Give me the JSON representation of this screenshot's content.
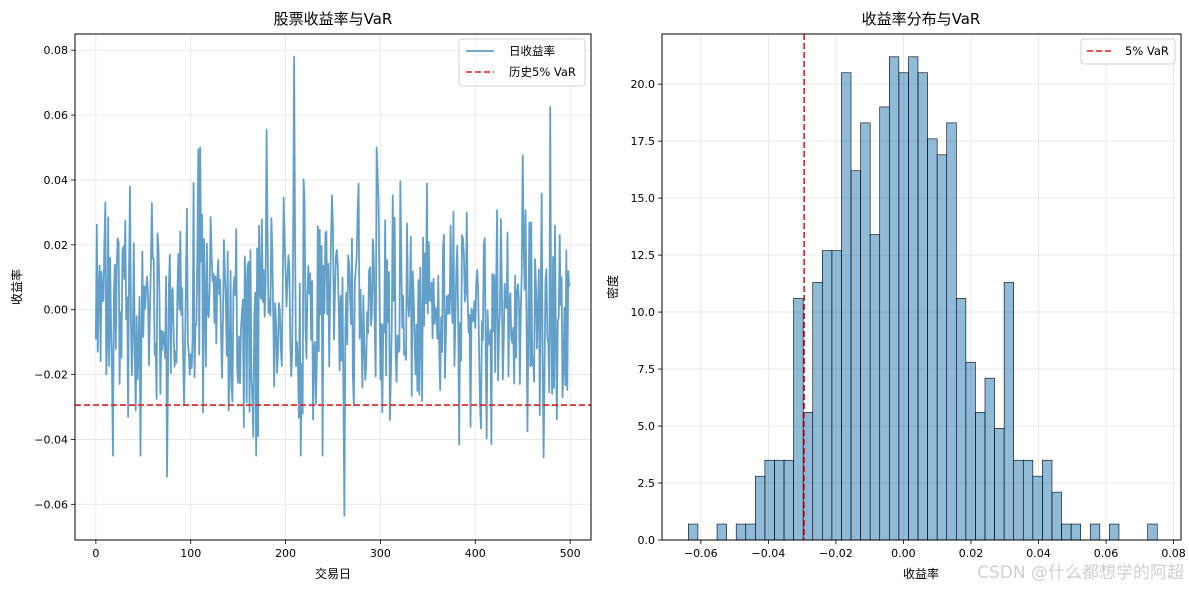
{
  "watermark": "CSDN @什么都想学的阿超",
  "chart_data": [
    {
      "type": "line",
      "title": "股票收益率与VaR",
      "xlabel": "交易日",
      "ylabel": "收益率",
      "xlim": [
        -22,
        522
      ],
      "ylim": [
        -0.071,
        0.085
      ],
      "xticks": [
        0,
        100,
        200,
        300,
        400,
        500
      ],
      "xtick_labels": [
        "0",
        "100",
        "200",
        "300",
        "400",
        "500"
      ],
      "yticks": [
        -0.06,
        -0.04,
        -0.02,
        0.0,
        0.02,
        0.04,
        0.06,
        0.08
      ],
      "ytick_labels": [
        "−0.06",
        "−0.04",
        "−0.02",
        "0.00",
        "0.02",
        "0.04",
        "0.06",
        "0.08"
      ],
      "grid": true,
      "legend_position": "top-right",
      "series": [
        {
          "name": "日收益率",
          "kind": "line",
          "color": "#1f77b4",
          "opacity": 0.7,
          "n_points": 500,
          "mean": 0.0,
          "std": 0.0185,
          "min": -0.0635,
          "max": 0.078,
          "notable_points": [
            [
              10,
              0.033
            ],
            [
              36,
              0.038
            ],
            [
              75,
              -0.0515
            ],
            [
              110,
              0.05
            ],
            [
              180,
              0.0555
            ],
            [
              209,
              0.078
            ],
            [
              262,
              -0.0635
            ],
            [
              383,
              -0.0415
            ],
            [
              417,
              -0.0415
            ],
            [
              455,
              -0.0375
            ],
            [
              472,
              -0.0455
            ],
            [
              479,
              0.0625
            ],
            [
              500,
              -0.027
            ]
          ]
        },
        {
          "name": "历史5% VaR",
          "kind": "hline",
          "y": -0.0294,
          "color": "#e31a1c",
          "dash": "dashed"
        }
      ]
    },
    {
      "type": "bar",
      "title": "收益率分布与VaR",
      "xlabel": "收益率",
      "ylabel": "密度",
      "xlim": [
        -0.0715,
        0.0822
      ],
      "ylim": [
        0,
        22.2
      ],
      "xticks": [
        -0.06,
        -0.04,
        -0.02,
        0.0,
        0.02,
        0.04,
        0.06,
        0.08
      ],
      "xtick_labels": [
        "−0.06",
        "−0.04",
        "−0.02",
        "0.00",
        "0.02",
        "0.04",
        "0.06",
        "0.08"
      ],
      "yticks": [
        0.0,
        2.5,
        5.0,
        7.5,
        10.0,
        12.5,
        15.0,
        17.5,
        20.0
      ],
      "ytick_labels": [
        "0.0",
        "2.5",
        "5.0",
        "7.5",
        "10.0",
        "12.5",
        "15.0",
        "17.5",
        "20.0"
      ],
      "grid": true,
      "legend_position": "top-right",
      "bin_start": -0.0637,
      "bin_width": 0.002834,
      "bar_color": "#1f77b4",
      "bar_opacity": 0.5,
      "values": [
        0.7,
        0,
        0,
        0.7,
        0,
        0.7,
        0.7,
        2.8,
        3.5,
        3.5,
        3.5,
        10.6,
        5.6,
        11.3,
        12.7,
        12.7,
        20.5,
        16.2,
        18.3,
        13.4,
        19.0,
        21.2,
        20.5,
        21.2,
        20.5,
        17.6,
        16.9,
        18.3,
        10.6,
        7.8,
        5.6,
        7.1,
        4.9,
        11.3,
        3.5,
        3.5,
        2.8,
        3.5,
        2.1,
        0.7,
        0.7,
        0,
        0.7,
        0,
        0.7,
        0,
        0,
        0,
        0.7
      ],
      "series": [
        {
          "name": "5% VaR",
          "kind": "vline",
          "x": -0.0294,
          "color": "#e31a1c",
          "dash": "dashed"
        }
      ]
    }
  ]
}
